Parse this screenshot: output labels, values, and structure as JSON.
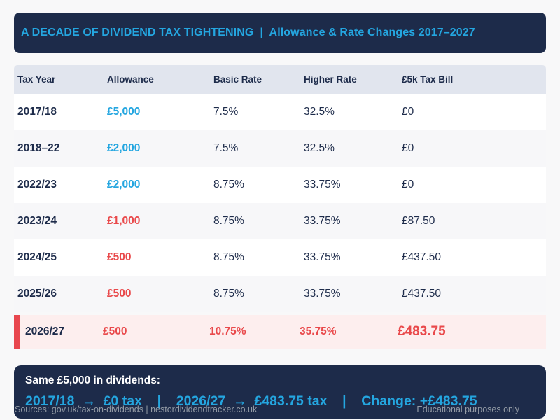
{
  "colors": {
    "navy": "#1d2b4a",
    "cyan_accent": "#24a6e0",
    "red_accent": "#e9494b",
    "accent_bar": "#e8474f",
    "highlight_row_bg": "#fdeeee",
    "table_header_bg": "#e1e5ee",
    "alt_row_bg": "#f7f7f9",
    "page_bg": "#f8f8f9"
  },
  "header": {
    "title": "A DECADE OF DIVIDEND TAX TIGHTENING  |  Allowance & Rate Changes 2017–2027"
  },
  "table": {
    "columns": [
      "Tax Year",
      "Allowance",
      "Basic Rate",
      "Higher Rate",
      "£5k Tax Bill"
    ],
    "rows": [
      {
        "tax_year": "2017/18",
        "allowance": "£5,000",
        "basic_rate": "7.5%",
        "higher_rate": "32.5%",
        "tax_bill": "£0"
      },
      {
        "tax_year": "2018–22",
        "allowance": "£2,000",
        "basic_rate": "7.5%",
        "higher_rate": "32.5%",
        "tax_bill": "£0"
      },
      {
        "tax_year": "2022/23",
        "allowance": "£2,000",
        "basic_rate": "8.75%",
        "higher_rate": "33.75%",
        "tax_bill": "£0"
      },
      {
        "tax_year": "2023/24",
        "allowance": "£1,000",
        "basic_rate": "8.75%",
        "higher_rate": "33.75%",
        "tax_bill": "£87.50"
      },
      {
        "tax_year": "2024/25",
        "allowance": "£500",
        "basic_rate": "8.75%",
        "higher_rate": "33.75%",
        "tax_bill": "£437.50"
      },
      {
        "tax_year": "2025/26",
        "allowance": "£500",
        "basic_rate": "8.75%",
        "higher_rate": "33.75%",
        "tax_bill": "£437.50"
      },
      {
        "tax_year": "2026/27",
        "allowance": "£500",
        "basic_rate": "10.75%",
        "higher_rate": "35.75%",
        "tax_bill": "£483.75"
      }
    ]
  },
  "summary": {
    "heading": "Same £5,000 in dividends:",
    "comparison": "2017/18  →  £0 tax    |    2026/27  →  £483.75 tax    |    Change: +£483.75"
  },
  "footer": {
    "sources": "Sources: gov.uk/tax-on-dividends | nestordividendtracker.co.uk",
    "disclaimer": "Educational purposes only"
  },
  "chart_data": {
    "type": "table",
    "title": "A DECADE OF DIVIDEND TAX TIGHTENING | Allowance & Rate Changes 2017–2027",
    "columns": [
      "Tax Year",
      "Allowance",
      "Basic Rate",
      "Higher Rate",
      "£5k Tax Bill"
    ],
    "rows": [
      [
        "2017/18",
        "£5,000",
        "7.5%",
        "32.5%",
        "£0"
      ],
      [
        "2018–22",
        "£2,000",
        "7.5%",
        "32.5%",
        "£0"
      ],
      [
        "2022/23",
        "£2,000",
        "8.75%",
        "33.75%",
        "£0"
      ],
      [
        "2023/24",
        "£1,000",
        "8.75%",
        "33.75%",
        "£87.50"
      ],
      [
        "2024/25",
        "£500",
        "8.75%",
        "33.75%",
        "£437.50"
      ],
      [
        "2025/26",
        "£500",
        "8.75%",
        "33.75%",
        "£437.50"
      ],
      [
        "2026/27",
        "£500",
        "10.75%",
        "35.75%",
        "£483.75"
      ]
    ],
    "annotations": [
      "Same £5,000 in dividends:",
      "2017/18 → £0 tax | 2026/27 → £483.75 tax | Change: +£483.75"
    ]
  }
}
